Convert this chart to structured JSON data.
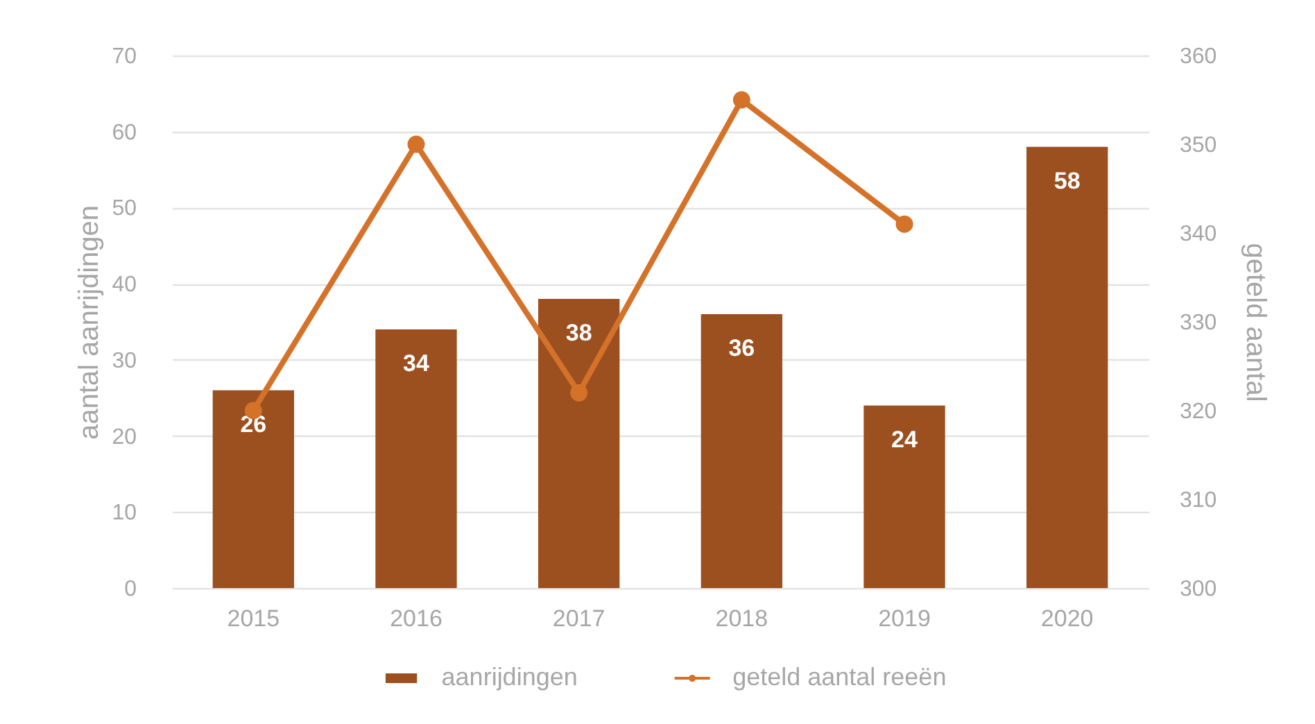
{
  "chart_data": {
    "type": "bar",
    "categories": [
      "2015",
      "2016",
      "2017",
      "2018",
      "2019",
      "2020"
    ],
    "ylabel": "aantal aanrijdingen",
    "y2label": "geteld aantal",
    "ylim": [
      0,
      70
    ],
    "yticks": [
      0,
      10,
      20,
      30,
      40,
      50,
      60,
      70
    ],
    "y2lim": [
      300,
      360
    ],
    "y2ticks": [
      300,
      310,
      320,
      330,
      340,
      350,
      360
    ],
    "grid": "y",
    "legend": "bottom",
    "marker": "circle",
    "series": [
      {
        "name": "aanrijdingen",
        "color": "#9c4f1f",
        "values": [
          26,
          34,
          38,
          36,
          24,
          58
        ],
        "value_labels": [
          "26",
          "34",
          "38",
          "36",
          "24",
          "58"
        ]
      },
      {
        "name": "geteld aantal reeën",
        "type": "line",
        "axis": "y2",
        "color": "#d4722a",
        "values": [
          320,
          350,
          322,
          355,
          341,
          null
        ]
      }
    ]
  }
}
